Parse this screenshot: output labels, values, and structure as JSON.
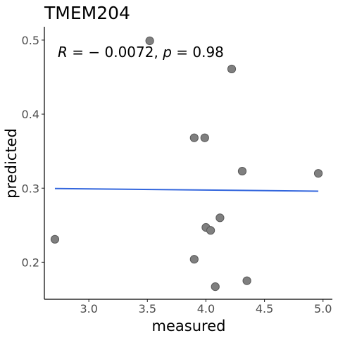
{
  "chart_data": {
    "type": "scatter",
    "title": "TMEM204",
    "xlabel": "measured",
    "ylabel": "predicted",
    "xlim": [
      2.62,
      5.08
    ],
    "ylim": [
      0.15,
      0.518
    ],
    "x_ticks": [
      3.0,
      3.5,
      4.0,
      4.5,
      5.0
    ],
    "x_tick_labels": [
      "3.0",
      "3.5",
      "4.0",
      "4.5",
      "5.0"
    ],
    "y_ticks": [
      0.2,
      0.3,
      0.4,
      0.5
    ],
    "y_tick_labels": [
      "0.2",
      "0.3",
      "0.4",
      "0.5"
    ],
    "grid": false,
    "points": [
      {
        "x": 2.71,
        "y": 0.231
      },
      {
        "x": 3.52,
        "y": 0.499
      },
      {
        "x": 3.9,
        "y": 0.368
      },
      {
        "x": 3.9,
        "y": 0.204
      },
      {
        "x": 3.99,
        "y": 0.368
      },
      {
        "x": 4.0,
        "y": 0.247
      },
      {
        "x": 4.04,
        "y": 0.243
      },
      {
        "x": 4.08,
        "y": 0.167
      },
      {
        "x": 4.12,
        "y": 0.26
      },
      {
        "x": 4.22,
        "y": 0.461
      },
      {
        "x": 4.31,
        "y": 0.323
      },
      {
        "x": 4.35,
        "y": 0.175
      },
      {
        "x": 4.96,
        "y": 0.32
      }
    ],
    "regression_line": {
      "x": [
        2.71,
        4.96
      ],
      "y": [
        0.2995,
        0.296
      ],
      "color": "#3366dd"
    },
    "annotation": {
      "r_symbol": "R",
      "r_value": " = − 0.0072, ",
      "p_symbol": "p",
      "p_value": " = 0.98"
    },
    "point_color": "#595959",
    "point_fill": "#7f7f7f"
  }
}
